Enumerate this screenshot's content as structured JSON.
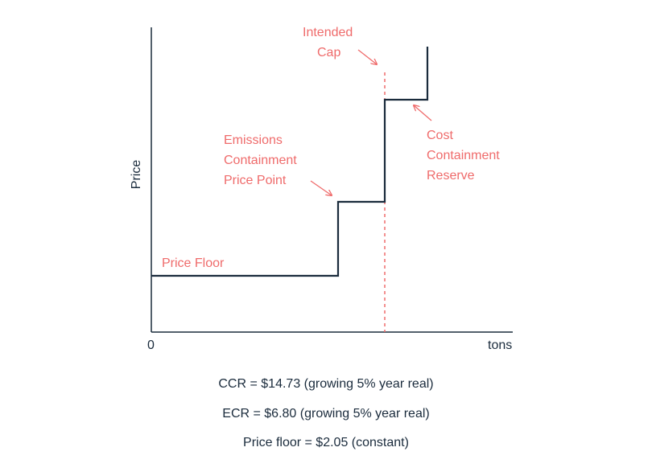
{
  "axes": {
    "y_label": "Price",
    "x_label": "tons",
    "origin_label": "0"
  },
  "annotations": {
    "intended_cap": [
      "Intended",
      "Cap"
    ],
    "emissions_containment": [
      "Emissions",
      "Containment",
      "Price Point"
    ],
    "cost_containment": [
      "Cost",
      "Containment",
      "Reserve"
    ],
    "price_floor": "Price Floor"
  },
  "notes": [
    "CCR = $14.73 (growing 5% year real)",
    "ECR = $6.80 (growing 5% year real)",
    "Price floor = $2.05 (constant)"
  ],
  "colors": {
    "supply_curve": "#1a2b3c",
    "annotation": "#ef6b6b",
    "axis": "#1a2b3c"
  }
}
